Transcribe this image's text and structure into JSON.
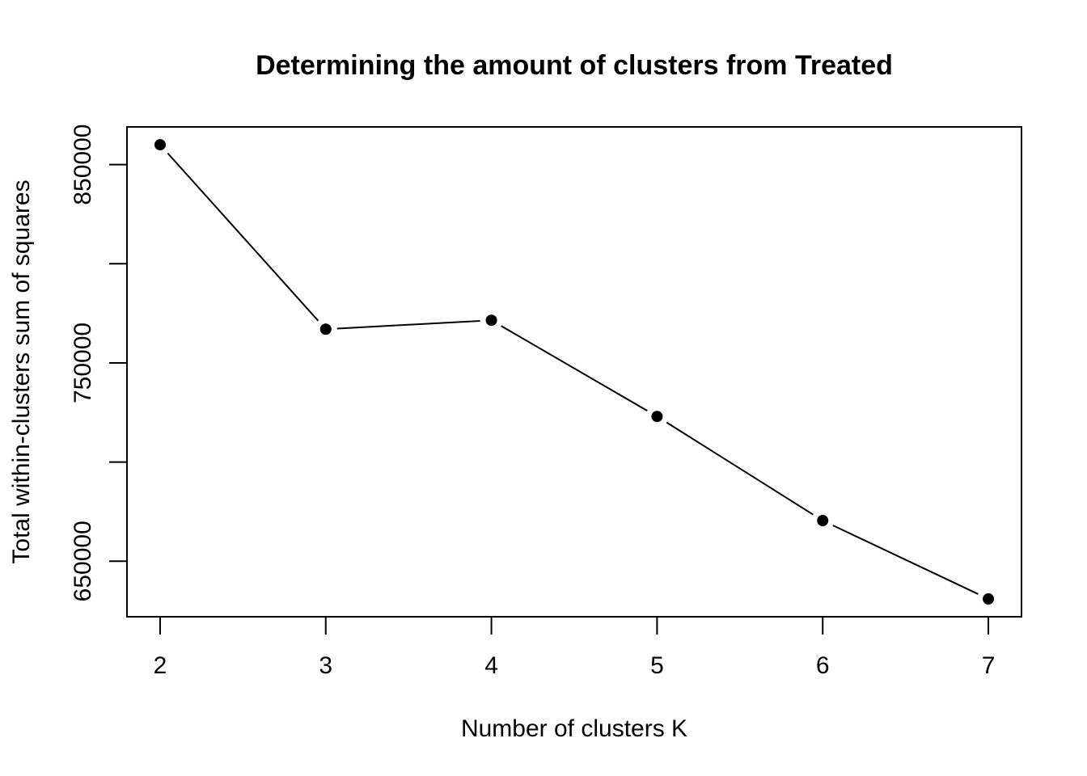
{
  "chart_data": {
    "type": "line",
    "title": "Determining the amount of clusters from Treated",
    "xlabel": "Number of clusters K",
    "ylabel": "Total within-clusters sum of squares",
    "x": [
      2,
      3,
      4,
      5,
      6,
      7
    ],
    "y": [
      860000,
      767000,
      771500,
      723000,
      670500,
      631000
    ],
    "xticks": [
      "2",
      "3",
      "4",
      "5",
      "6",
      "7"
    ],
    "yticks": [
      "650000",
      "700000",
      "750000",
      "800000",
      "850000"
    ],
    "ytick_values": [
      650000,
      700000,
      750000,
      800000,
      850000
    ],
    "xlim": [
      1.8,
      7.2
    ],
    "ylim": [
      622000,
      869000
    ],
    "grid": false,
    "legend": "none",
    "marker": "filled-circle",
    "line_style": "solid-with-gaps-at-points",
    "color": "#000000"
  }
}
